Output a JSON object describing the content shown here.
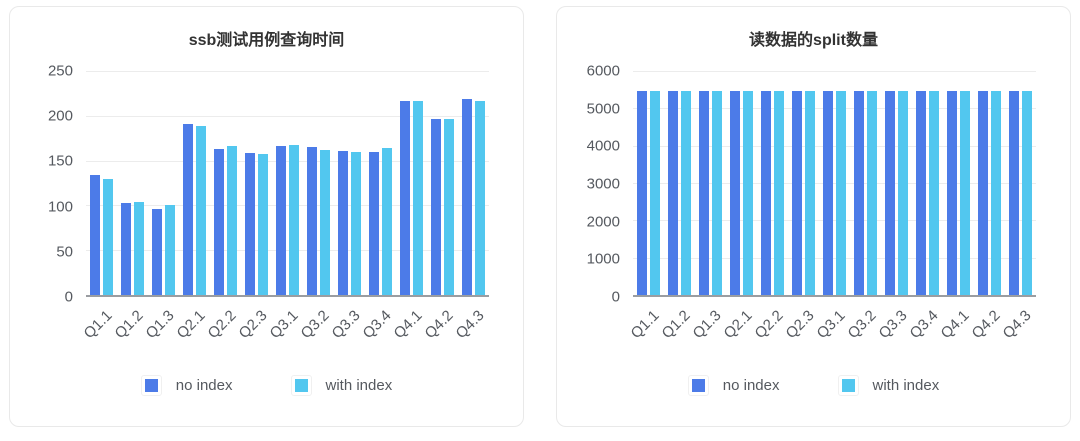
{
  "colors": {
    "no_index": "#4c7be8",
    "with_index": "#52c7ef",
    "title_text": "#333333",
    "axis_text": "#55595f",
    "gridline": "#ececec",
    "axis_baseline": "#9a9da1",
    "card_border": "#e9e9e9",
    "background": "#ffffff"
  },
  "chart_data": [
    {
      "type": "bar",
      "title": "ssb测试用例查询时间",
      "categories": [
        "Q1.1",
        "Q1.2",
        "Q1.3",
        "Q2.1",
        "Q2.2",
        "Q2.3",
        "Q3.1",
        "Q3.2",
        "Q3.3",
        "Q3.4",
        "Q4.1",
        "Q4.2",
        "Q4.3"
      ],
      "series": [
        {
          "name": "no index",
          "color": "#4c7be8",
          "values": [
            134,
            103,
            96,
            191,
            163,
            158,
            166,
            165,
            161,
            160,
            216,
            197,
            219
          ]
        },
        {
          "name": "with index",
          "color": "#52c7ef",
          "values": [
            129,
            104,
            100,
            189,
            166,
            157,
            167,
            162,
            160,
            164,
            216,
            197,
            216
          ]
        }
      ],
      "xlabel": "",
      "ylabel": "",
      "ylim": [
        0,
        250
      ],
      "y_ticks": [
        250,
        200,
        150,
        100,
        50,
        0
      ],
      "grid": true,
      "legend_position": "bottom",
      "legend": [
        "no index",
        "with index"
      ]
    },
    {
      "type": "bar",
      "title": "读数据的split数量",
      "categories": [
        "Q1.1",
        "Q1.2",
        "Q1.3",
        "Q2.1",
        "Q2.2",
        "Q2.3",
        "Q3.1",
        "Q3.2",
        "Q3.3",
        "Q3.4",
        "Q4.1",
        "Q4.2",
        "Q4.3"
      ],
      "series": [
        {
          "name": "no index",
          "color": "#4c7be8",
          "values": [
            5470,
            5470,
            5470,
            5470,
            5470,
            5470,
            5470,
            5470,
            5470,
            5470,
            5470,
            5470,
            5470
          ]
        },
        {
          "name": "with index",
          "color": "#52c7ef",
          "values": [
            5470,
            5470,
            5470,
            5470,
            5470,
            5470,
            5470,
            5470,
            5470,
            5470,
            5470,
            5470,
            5470
          ]
        }
      ],
      "xlabel": "",
      "ylabel": "",
      "ylim": [
        0,
        6000
      ],
      "y_ticks": [
        6000,
        5000,
        4000,
        3000,
        2000,
        1000,
        0
      ],
      "grid": true,
      "legend_position": "bottom",
      "legend": [
        "no index",
        "with index"
      ]
    }
  ]
}
